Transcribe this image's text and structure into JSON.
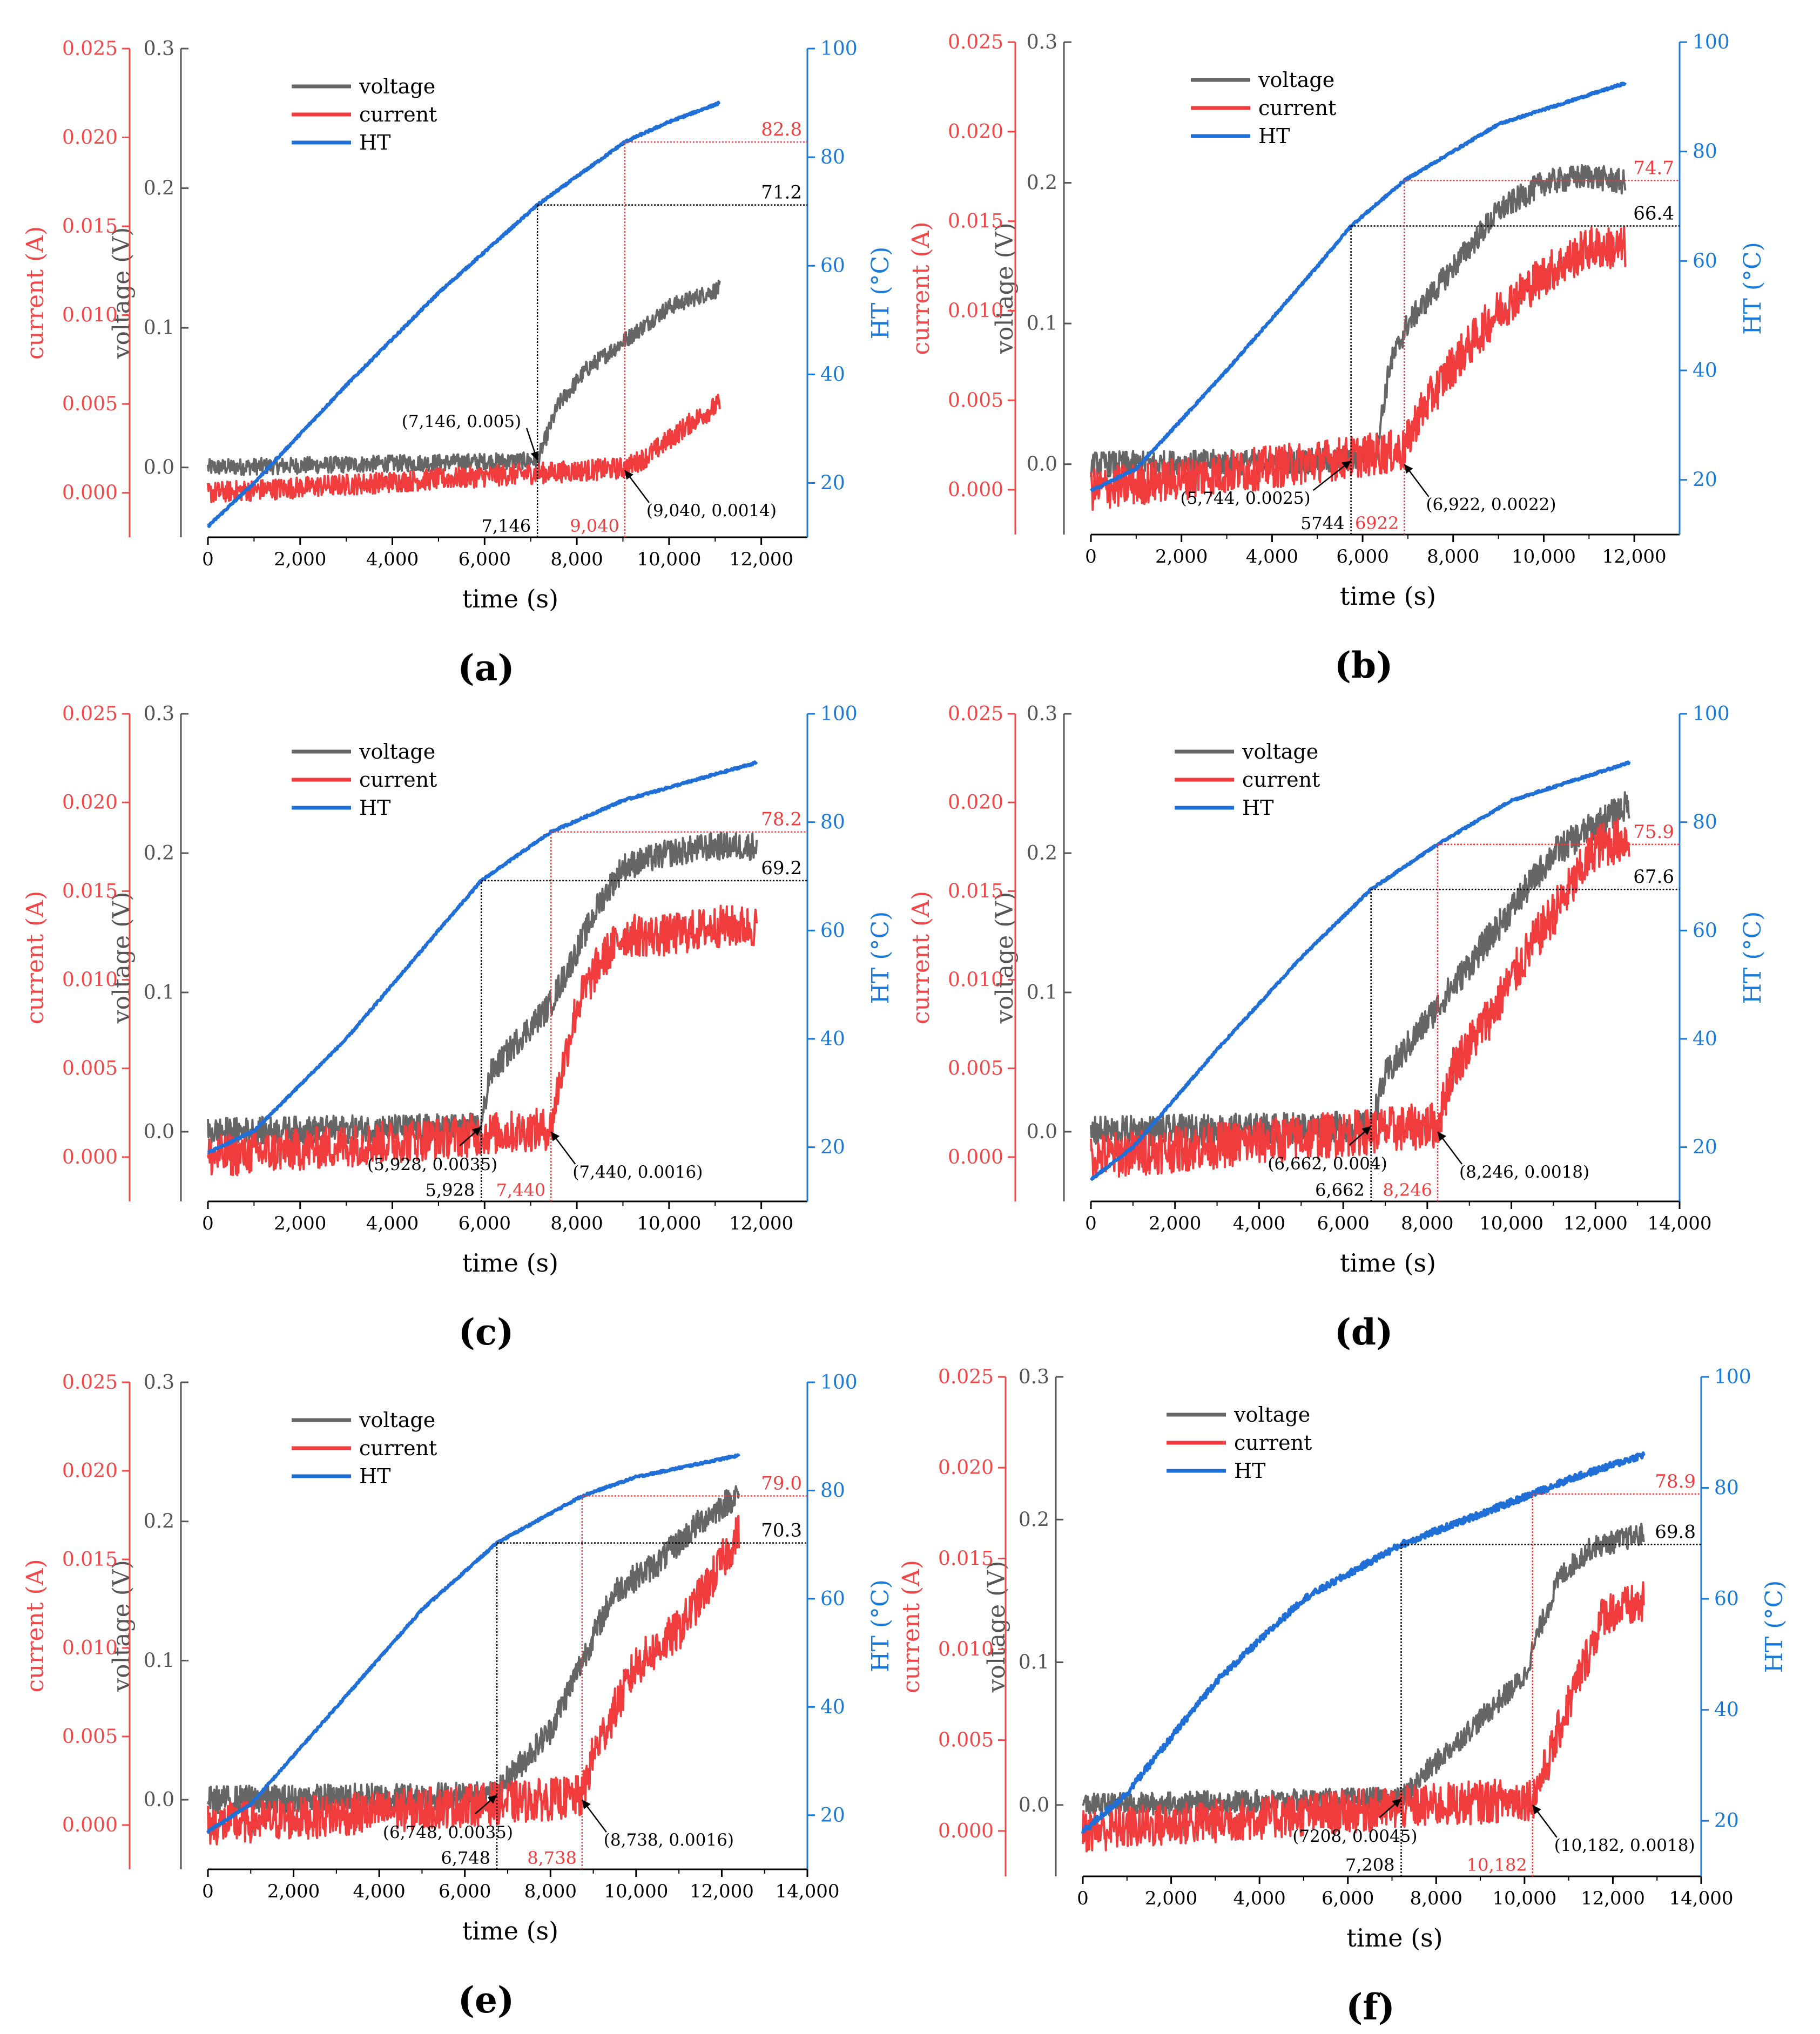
{
  "colors": {
    "voltage": "#666666",
    "current": "#f03c3c",
    "ht": "#1f6fd6",
    "current_axis": "#f04848",
    "ht_axis": "#1a7ad8",
    "voltage_axis": "#555555",
    "black": "#000000"
  },
  "legend": {
    "voltage": "voltage",
    "current": "current",
    "ht": "HT"
  },
  "axis_labels": {
    "time": "time (s)",
    "current": "current (A)",
    "voltage": "voltage (V)",
    "ht": "HT (°C)"
  },
  "current_ticks": [
    "0.000",
    "0.005",
    "0.010",
    "0.015",
    "0.020",
    "0.025"
  ],
  "voltage_ticks": [
    "0.0",
    "0.1",
    "0.2",
    "0.3"
  ],
  "ht_ticks": [
    "20",
    "40",
    "60",
    "80",
    "100"
  ],
  "chart_data": [
    {
      "type": "line",
      "panel_label": "(a)",
      "x_ticks": [
        "0",
        "2,000",
        "4,000",
        "6,000",
        "8,000",
        "10,000",
        "12,000"
      ],
      "xlim": [
        0,
        13000
      ],
      "voltage_lim": [
        -0.05,
        0.3
      ],
      "current_lim": [
        -0.0025,
        0.025
      ],
      "ht_lim": [
        10,
        100
      ],
      "series": [
        {
          "name": "voltage",
          "axis": "voltage",
          "x": [
            0,
            7146,
            7600,
            8200,
            9000,
            10000,
            11100
          ],
          "y": [
            0.0,
            0.005,
            0.045,
            0.07,
            0.09,
            0.115,
            0.128
          ],
          "noise": 0.006
        },
        {
          "name": "current",
          "axis": "current",
          "x": [
            0,
            9040,
            9500,
            10000,
            10500,
            11100
          ],
          "y": [
            0.0,
            0.0014,
            0.002,
            0.003,
            0.004,
            0.005
          ],
          "noise": 0.0006
        },
        {
          "name": "HT",
          "axis": "ht",
          "x": [
            0,
            1000,
            3000,
            5000,
            7146,
            9040,
            10000,
            11100
          ],
          "y": [
            12,
            20,
            38,
            55,
            71.2,
            82.8,
            86.5,
            90
          ],
          "noise": 0.2
        }
      ],
      "guides": {
        "black": {
          "time": 7146,
          "temp": 71.2,
          "time_label": "7,146",
          "temp_label": "71.2"
        },
        "red": {
          "time": 9040,
          "temp": 82.8,
          "time_label": "9,040",
          "temp_label": "82.8"
        }
      },
      "annotations": [
        {
          "text": "(7,146, 0.005)",
          "at_x": 7146,
          "at_v": 0.005,
          "side": "left"
        },
        {
          "text": "(9,040, 0.0014)",
          "at_x": 9040,
          "at_v": -0.002,
          "side": "right"
        }
      ]
    },
    {
      "type": "line",
      "panel_label": "(b)",
      "x_ticks": [
        "0",
        "2,000",
        "4,000",
        "6,000",
        "8,000",
        "10,000",
        "12,000"
      ],
      "xlim": [
        0,
        13000
      ],
      "voltage_lim": [
        -0.05,
        0.3
      ],
      "current_lim": [
        -0.0025,
        0.025
      ],
      "ht_lim": [
        10,
        100
      ],
      "series": [
        {
          "name": "voltage",
          "axis": "voltage",
          "x": [
            0,
            5744,
            6300,
            6600,
            7000,
            8000,
            9000,
            10000,
            11000,
            11800
          ],
          "y": [
            0.0,
            0.0025,
            0.01,
            0.07,
            0.1,
            0.14,
            0.18,
            0.2,
            0.205,
            0.2
          ],
          "noise": 0.009
        },
        {
          "name": "current",
          "axis": "current",
          "x": [
            0,
            6922,
            7200,
            8000,
            9000,
            10000,
            11000,
            11800
          ],
          "y": [
            0.0,
            0.0022,
            0.004,
            0.007,
            0.01,
            0.012,
            0.0135,
            0.0135
          ],
          "noise": 0.0012
        },
        {
          "name": "HT",
          "axis": "ht",
          "x": [
            0,
            1000,
            3000,
            5000,
            5744,
            6922,
            9000,
            11800
          ],
          "y": [
            18,
            22,
            40,
            59,
            66.4,
            74.7,
            85,
            92.5
          ],
          "noise": 0.2
        }
      ],
      "guides": {
        "black": {
          "time": 5744,
          "temp": 66.4,
          "time_label": "5744",
          "temp_label": "66.4"
        },
        "red": {
          "time": 6922,
          "temp": 74.7,
          "time_label": "6922",
          "temp_label": "74.7"
        }
      },
      "annotations": [
        {
          "text": "(5,744, 0.0025)",
          "at_x": 5744,
          "at_v": 0.0025,
          "side": "left"
        },
        {
          "text": "(6,922, 0.0022)",
          "at_x": 6922,
          "at_v": 0.0,
          "side": "right"
        }
      ]
    },
    {
      "type": "line",
      "panel_label": "(c)",
      "x_ticks": [
        "0",
        "2,000",
        "4,000",
        "6,000",
        "8,000",
        "10,000",
        "12,000"
      ],
      "xlim": [
        0,
        13000
      ],
      "voltage_lim": [
        -0.05,
        0.3
      ],
      "current_lim": [
        -0.0025,
        0.025
      ],
      "ht_lim": [
        10,
        100
      ],
      "series": [
        {
          "name": "voltage",
          "axis": "voltage",
          "x": [
            0,
            5928,
            6100,
            6700,
            7400,
            8000,
            8500,
            9000,
            10000,
            11000,
            11900
          ],
          "y": [
            0.0,
            0.0035,
            0.04,
            0.065,
            0.09,
            0.13,
            0.165,
            0.19,
            0.2,
            0.205,
            0.205
          ],
          "noise": 0.01
        },
        {
          "name": "current",
          "axis": "current",
          "x": [
            0,
            7440,
            7600,
            8000,
            8500,
            9000,
            10000,
            11000,
            11900
          ],
          "y": [
            0.0,
            0.0016,
            0.004,
            0.0085,
            0.011,
            0.0125,
            0.0125,
            0.013,
            0.013
          ],
          "noise": 0.0012
        },
        {
          "name": "HT",
          "axis": "ht",
          "x": [
            0,
            1000,
            3000,
            5000,
            5928,
            7440,
            9000,
            11900
          ],
          "y": [
            19,
            23,
            40,
            60,
            69.2,
            78.2,
            84,
            91
          ],
          "noise": 0.2
        }
      ],
      "guides": {
        "black": {
          "time": 5928,
          "temp": 69.2,
          "time_label": "5,928",
          "temp_label": "69.2"
        },
        "red": {
          "time": 7440,
          "temp": 78.2,
          "time_label": "7,440",
          "temp_label": "78.2"
        }
      },
      "annotations": [
        {
          "text": "(5,928, 0.0035)",
          "at_x": 5928,
          "at_v": 0.0035,
          "side": "left"
        },
        {
          "text": "(7,440, 0.0016)",
          "at_x": 7440,
          "at_v": 0.0,
          "side": "right"
        }
      ]
    },
    {
      "type": "line",
      "panel_label": "(d)",
      "x_ticks": [
        "0",
        "2,000",
        "4,000",
        "6,000",
        "8,000",
        "10,000",
        "12,000",
        "14,000"
      ],
      "xlim": [
        0,
        14000
      ],
      "voltage_lim": [
        -0.05,
        0.3
      ],
      "current_lim": [
        -0.0025,
        0.025
      ],
      "ht_lim": [
        10,
        100
      ],
      "series": [
        {
          "name": "voltage",
          "axis": "voltage",
          "x": [
            0,
            6662,
            7000,
            8000,
            9000,
            10000,
            11000,
            12000,
            12800
          ],
          "y": [
            0.0,
            0.004,
            0.04,
            0.08,
            0.12,
            0.16,
            0.2,
            0.22,
            0.235
          ],
          "noise": 0.011
        },
        {
          "name": "current",
          "axis": "current",
          "x": [
            0,
            8246,
            8600,
            9500,
            10500,
            11500,
            12000,
            12800
          ],
          "y": [
            0.0,
            0.0018,
            0.005,
            0.008,
            0.012,
            0.0155,
            0.0175,
            0.018
          ],
          "noise": 0.0013
        },
        {
          "name": "HT",
          "axis": "ht",
          "x": [
            0,
            1000,
            3000,
            5000,
            6662,
            8246,
            10000,
            12800
          ],
          "y": [
            14,
            20,
            38,
            55,
            67.6,
            75.9,
            84,
            91
          ],
          "noise": 0.2
        }
      ],
      "guides": {
        "black": {
          "time": 6662,
          "temp": 67.6,
          "time_label": "6,662",
          "temp_label": "67.6"
        },
        "red": {
          "time": 8246,
          "temp": 75.9,
          "time_label": "8,246",
          "temp_label": "75.9"
        }
      },
      "annotations": [
        {
          "text": "(6,662, 0.004)",
          "at_x": 6662,
          "at_v": 0.004,
          "side": "left"
        },
        {
          "text": "(8,246, 0.0018)",
          "at_x": 8246,
          "at_v": 0.0,
          "side": "right"
        }
      ]
    },
    {
      "type": "line",
      "panel_label": "(e)",
      "x_ticks": [
        "0",
        "2,000",
        "4,000",
        "6,000",
        "8,000",
        "10,000",
        "12,000",
        "14,000"
      ],
      "xlim": [
        0,
        14000
      ],
      "voltage_lim": [
        -0.05,
        0.3
      ],
      "current_lim": [
        -0.0025,
        0.025
      ],
      "ht_lim": [
        10,
        100
      ],
      "series": [
        {
          "name": "voltage",
          "axis": "voltage",
          "x": [
            0,
            6748,
            7000,
            8000,
            8738,
            9500,
            10500,
            11500,
            12400
          ],
          "y": [
            0.0,
            0.0035,
            0.015,
            0.05,
            0.1,
            0.15,
            0.17,
            0.2,
            0.22
          ],
          "noise": 0.01
        },
        {
          "name": "current",
          "axis": "current",
          "x": [
            0,
            8738,
            9000,
            10000,
            11000,
            11800,
            12400
          ],
          "y": [
            0.0,
            0.0016,
            0.004,
            0.009,
            0.011,
            0.014,
            0.0165
          ],
          "noise": 0.0012
        },
        {
          "name": "HT",
          "axis": "ht",
          "x": [
            0,
            1000,
            3000,
            5000,
            6748,
            8738,
            10000,
            12400
          ],
          "y": [
            17,
            22,
            40,
            58,
            70.3,
            79.0,
            82.5,
            86.5
          ],
          "noise": 0.2
        }
      ],
      "guides": {
        "black": {
          "time": 6748,
          "temp": 70.3,
          "time_label": "6,748",
          "temp_label": "70.3"
        },
        "red": {
          "time": 8738,
          "temp": 79.0,
          "time_label": "8,738",
          "temp_label": "79.0"
        }
      },
      "annotations": [
        {
          "text": "(6,748, 0.0035)",
          "at_x": 6748,
          "at_v": 0.0035,
          "side": "left"
        },
        {
          "text": "(8,738, 0.0016)",
          "at_x": 8738,
          "at_v": 0.0,
          "side": "right"
        }
      ]
    },
    {
      "type": "line",
      "panel_label": "(f)",
      "x_ticks": [
        "0",
        "2,000",
        "4,000",
        "6,000",
        "8,000",
        "10,000",
        "12,000",
        "14,000"
      ],
      "xlim": [
        0,
        14000
      ],
      "voltage_lim": [
        -0.05,
        0.3
      ],
      "current_lim": [
        -0.0025,
        0.025
      ],
      "ht_lim": [
        10,
        100
      ],
      "series": [
        {
          "name": "voltage",
          "axis": "voltage",
          "x": [
            0,
            7208,
            8000,
            9000,
            10000,
            10300,
            10800,
            11500,
            12700
          ],
          "y": [
            0.0,
            0.0045,
            0.03,
            0.06,
            0.09,
            0.12,
            0.16,
            0.18,
            0.19
          ],
          "noise": 0.008
        },
        {
          "name": "current",
          "axis": "current",
          "x": [
            0,
            10182,
            10400,
            11000,
            11800,
            12700
          ],
          "y": [
            0.0,
            0.0018,
            0.003,
            0.007,
            0.012,
            0.0125
          ],
          "noise": 0.0012
        },
        {
          "name": "HT",
          "axis": "ht",
          "x": [
            0,
            1000,
            3000,
            5000,
            7208,
            10182,
            11000,
            12700
          ],
          "y": [
            18,
            25,
            45,
            60,
            69.8,
            78.9,
            81.5,
            86
          ],
          "noise": 0.6
        }
      ],
      "guides": {
        "black": {
          "time": 7208,
          "temp": 69.8,
          "time_label": "7,208",
          "temp_label": "69.8"
        },
        "red": {
          "time": 10182,
          "temp": 78.9,
          "time_label": "10,182",
          "temp_label": "78.9"
        }
      },
      "annotations": [
        {
          "text": "(7208, 0.0045)",
          "at_x": 7208,
          "at_v": 0.0045,
          "side": "left"
        },
        {
          "text": "(10,182, 0.0018)",
          "at_x": 10182,
          "at_v": 0.0,
          "side": "right"
        }
      ]
    }
  ]
}
